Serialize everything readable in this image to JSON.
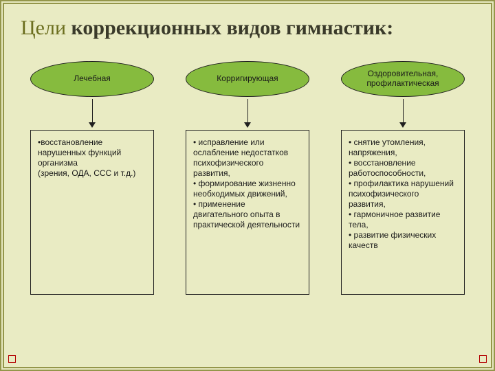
{
  "slide": {
    "background_color": "#e9ebc3",
    "border_color": "#94964a",
    "corner_color": "#b40000"
  },
  "title": {
    "html_parts": [
      "Цели",
      " коррекционных видов гимнастик:"
    ],
    "strong_color": "#6b6e1e",
    "text_color": "#3a3a2a",
    "fontsize": 30
  },
  "ellipse_style": {
    "fill": "#86bb3e",
    "stroke": "#1f1f1f",
    "text_color": "#1a1a1a",
    "fontsize": 12
  },
  "arrow_style": {
    "line_color": "#1f1f1f",
    "head_color": "#1f1f1f"
  },
  "box_style": {
    "border_color": "#1f1f1f",
    "text_color": "#1a1a1a",
    "fontsize": 12,
    "min_height": 240
  },
  "columns": [
    {
      "label": "Лечебная",
      "text": "•восстановление нарушенных функций организма\n(зрения, ОДА, ССС и т.д.)"
    },
    {
      "label": "Корригирующая",
      "text": "• исправление или ослабление недостатков психофизического развития,\n• формирование жизненно необходимых движений,\n• применение двигательного опыта в практической деятельности"
    },
    {
      "label": "Оздоровительная,\nпрофилактическая",
      "text": "• снятие утомления, напряжения,\n• восстановление работоспособности,\n• профилактика нарушений психофизического развития,\n• гармоничное развитие тела,\n• развитие физических качеств"
    }
  ]
}
